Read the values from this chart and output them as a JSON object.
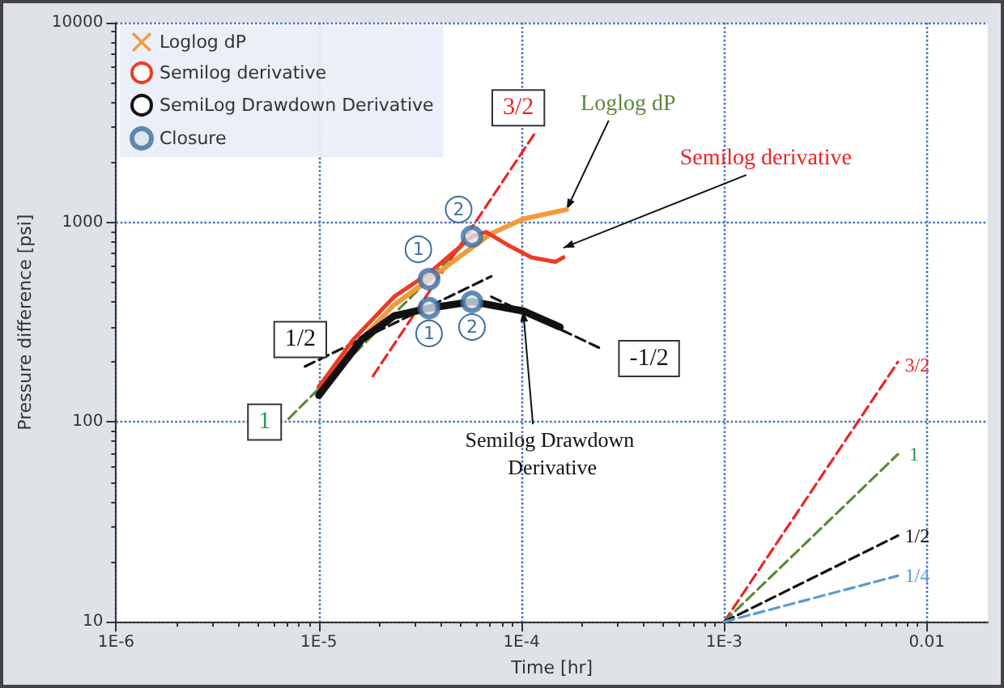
{
  "chart_data": {
    "type": "line",
    "xlabel": "Time [hr]",
    "ylabel": "Pressure difference [psi]",
    "log": "xy",
    "grid": true,
    "legend": "top left",
    "marker": "none",
    "xlim": [
      1e-06,
      0.02
    ],
    "xticks": [
      {
        "value": 1e-06,
        "label": "1E-6"
      },
      {
        "value": 1e-05,
        "label": "1E-5"
      },
      {
        "value": 0.0001,
        "label": "1E-4"
      },
      {
        "value": 0.001,
        "label": "1E-3"
      },
      0.01
    ],
    "ylim": [
      10,
      10000
    ],
    "yticks": [
      10,
      100,
      1000,
      10000
    ],
    "series": [
      {
        "name": "Loglog dP",
        "color": "#f39a3a",
        "x": [
          1e-05,
          1.48e-05,
          2.35e-05,
          3.5e-05,
          4.9e-05,
          7.1e-05,
          0.000102,
          0.000167
        ],
        "values": [
          150,
          236,
          386,
          518,
          669,
          880,
          1040,
          1160
        ]
      },
      {
        "name": "Semilog derivative",
        "color": "#ee3b24",
        "x": [
          1e-05,
          1.48e-05,
          2.35e-05,
          3.5e-05,
          5.7e-05,
          6.7e-05,
          8.5e-05,
          0.000112,
          0.000147,
          0.000161
        ],
        "values": [
          150,
          259,
          424,
          557,
          850,
          895,
          774,
          668,
          634,
          668
        ]
      },
      {
        "name": "SemiLog Drawdown Derivative",
        "color": "#111111",
        "x": [
          1e-05,
          1.63e-05,
          2.35e-05,
          3.5e-05,
          5.7e-05,
          8.5e-05,
          0.000102,
          0.000155
        ],
        "values": [
          136,
          259,
          340,
          372,
          401,
          372,
          360,
          299
        ]
      },
      {
        "name": "Closure",
        "type": "scatter",
        "marker": "circle",
        "color": "#3d6f9e",
        "x": [
          3.5e-05,
          5.7e-05,
          3.5e-05,
          5.7e-05
        ],
        "values": [
          520,
          850,
          372,
          400
        ]
      },
      {
        "type": "line",
        "line_style": "dashed",
        "color": "#5a8a3a",
        "x": [
          7.1e-06,
          5.7e-05
        ],
        "values": [
          104,
          850
        ]
      },
      {
        "type": "line",
        "line_style": "dashed",
        "color": "#ee2222",
        "x": [
          1.85e-05,
          0.000116
        ],
        "values": [
          170,
          2780
        ]
      },
      {
        "type": "line",
        "line_style": "dashed",
        "color": "#111111",
        "x": [
          8.55e-06,
          7.1e-05
        ],
        "values": [
          190,
          537
        ]
      },
      {
        "type": "line",
        "line_style": "dashed",
        "color": "#111111",
        "x": [
          7.1e-05,
          0.000241
        ],
        "values": [
          424,
          236
        ]
      },
      {
        "type": "line",
        "line_style": "dashed",
        "color": "#ee2222",
        "x": [
          0.001,
          0.0072
        ],
        "values": [
          10,
          200
        ]
      },
      {
        "type": "line",
        "line_style": "dashed",
        "color": "#5a8a3a",
        "x": [
          0.001,
          0.0072
        ],
        "values": [
          10,
          69
        ]
      },
      {
        "type": "line",
        "line_style": "dashed",
        "color": "#111111",
        "x": [
          0.001,
          0.0072
        ],
        "values": [
          10,
          27
        ]
      },
      {
        "type": "line",
        "line_style": "dashed",
        "color": "#5b9bd5",
        "x": [
          0.001,
          0.0072
        ],
        "values": [
          10,
          17
        ]
      }
    ],
    "annotations": [
      {
        "text": "3/2",
        "x": 0.000116,
        "y": 2780
      },
      {
        "text": "1/2",
        "x": 8.1e-06,
        "y": 259
      },
      {
        "text": "1",
        "x": 5.4e-06,
        "y": 100
      },
      {
        "text": "-1/2",
        "x": 0.000426,
        "y": 208
      },
      {
        "text": "1",
        "x": 3.1e-05,
        "y": 733
      },
      {
        "text": "2",
        "x": 4.9e-05,
        "y": 1160
      },
      {
        "text": "1",
        "x": 3.5e-05,
        "y": 278
      },
      {
        "text": "2",
        "x": 5.7e-05,
        "y": 299
      },
      {
        "text": "Loglog dP",
        "x": 0.000167,
        "y": 1160
      },
      {
        "text": "Semilog derivative",
        "x": 0.000161,
        "y": 746
      },
      {
        "text": "Semilog Drawdown Derivative",
        "x": 0.000102,
        "y": 360
      },
      {
        "text": "3/2",
        "x": 0.0072,
        "y": 200
      },
      {
        "text": "1",
        "x": 0.0072,
        "y": 69
      },
      {
        "text": "1/2",
        "x": 0.0072,
        "y": 27
      },
      {
        "text": "1/4",
        "x": 0.0072,
        "y": 17
      }
    ]
  }
}
